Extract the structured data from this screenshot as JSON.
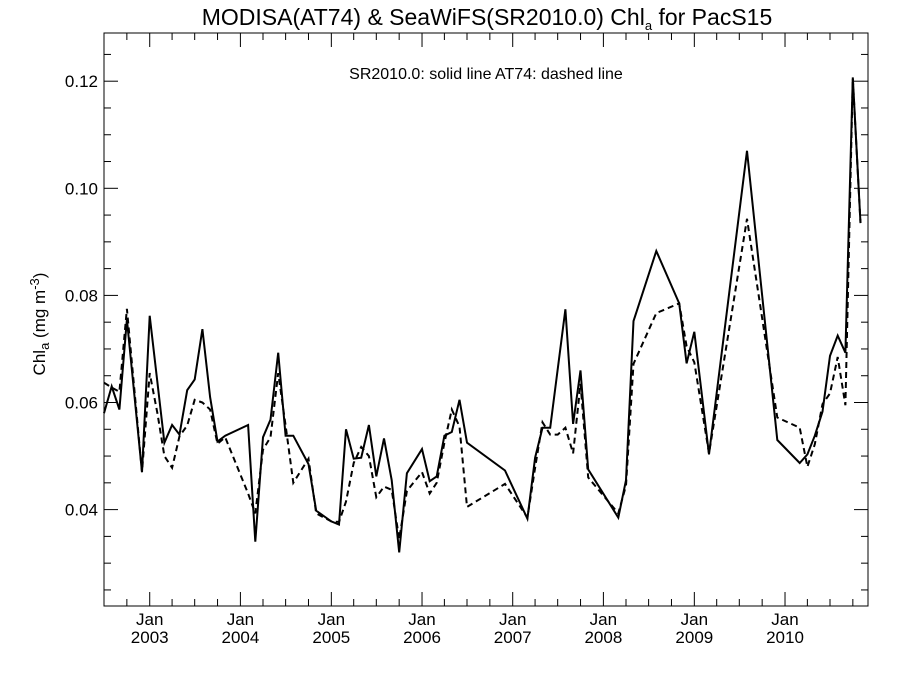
{
  "chart_data": {
    "type": "line",
    "title": {
      "main": "MODISA(AT74) & SeaWiFS(SR2010.0)  Chl",
      "sub": "a",
      "tail": " for PacS15"
    },
    "annotation": "SR2010.0: solid line   AT74: dashed line",
    "ylabel": {
      "main": "Chl",
      "sub": "a",
      "unit": " (mg m",
      "sup": "-3",
      "close": ")"
    },
    "ylim": [
      0.022,
      0.129
    ],
    "yticks": [
      0.04,
      0.06,
      0.08,
      0.1,
      0.12
    ],
    "ytick_labels": [
      "0.04",
      "0.06",
      "0.08",
      "0.10",
      "0.12"
    ],
    "ytick_minor": [
      0.025,
      0.03,
      0.035,
      0.045,
      0.05,
      0.055,
      0.065,
      0.07,
      0.075,
      0.085,
      0.09,
      0.095,
      0.105,
      0.11,
      0.115,
      0.125
    ],
    "xlim": [
      "2002-07-01",
      "2010-12-01"
    ],
    "xticks": [
      {
        "date": "2003-01-01",
        "month": "Jan",
        "year": "2003"
      },
      {
        "date": "2004-01-01",
        "month": "Jan",
        "year": "2004"
      },
      {
        "date": "2005-01-01",
        "month": "Jan",
        "year": "2005"
      },
      {
        "date": "2006-01-01",
        "month": "Jan",
        "year": "2006"
      },
      {
        "date": "2007-01-01",
        "month": "Jan",
        "year": "2007"
      },
      {
        "date": "2008-01-01",
        "month": "Jan",
        "year": "2008"
      },
      {
        "date": "2009-01-01",
        "month": "Jan",
        "year": "2009"
      },
      {
        "date": "2010-01-01",
        "month": "Jan",
        "year": "2010"
      }
    ],
    "xtick_minor_months": [
      4,
      7,
      10
    ],
    "grid": false,
    "series": [
      {
        "name": "SR2010.0",
        "style": "solid",
        "points": [
          [
            "2002-07-01",
            0.058
          ],
          [
            "2002-08-01",
            0.063
          ],
          [
            "2002-09-01",
            0.0587
          ],
          [
            "2002-10-01",
            0.0755
          ],
          [
            "2002-12-01",
            0.047
          ],
          [
            "2003-01-01",
            0.0762
          ],
          [
            "2003-03-01",
            0.0525
          ],
          [
            "2003-04-01",
            0.0558
          ],
          [
            "2003-05-01",
            0.054
          ],
          [
            "2003-06-01",
            0.0623
          ],
          [
            "2003-07-01",
            0.0643
          ],
          [
            "2003-08-01",
            0.0737
          ],
          [
            "2003-09-01",
            0.061
          ],
          [
            "2003-10-01",
            0.0527
          ],
          [
            "2003-11-01",
            0.0538
          ],
          [
            "2004-02-01",
            0.0558
          ],
          [
            "2004-03-01",
            0.034
          ],
          [
            "2004-04-01",
            0.0535
          ],
          [
            "2004-05-01",
            0.0568
          ],
          [
            "2004-06-01",
            0.0693
          ],
          [
            "2004-07-01",
            0.0538
          ],
          [
            "2004-08-01",
            0.0538
          ],
          [
            "2004-10-01",
            0.0485
          ],
          [
            "2004-11-01",
            0.0398
          ],
          [
            "2005-01-01",
            0.0378
          ],
          [
            "2005-02-01",
            0.0372
          ],
          [
            "2005-03-01",
            0.055
          ],
          [
            "2005-04-01",
            0.0495
          ],
          [
            "2005-05-01",
            0.0497
          ],
          [
            "2005-06-01",
            0.0558
          ],
          [
            "2005-07-01",
            0.0462
          ],
          [
            "2005-08-01",
            0.0533
          ],
          [
            "2005-09-01",
            0.0455
          ],
          [
            "2005-10-01",
            0.032
          ],
          [
            "2005-11-01",
            0.0468
          ],
          [
            "2006-01-01",
            0.0513
          ],
          [
            "2006-02-01",
            0.0453
          ],
          [
            "2006-03-01",
            0.0462
          ],
          [
            "2006-04-01",
            0.0538
          ],
          [
            "2006-05-01",
            0.0545
          ],
          [
            "2006-06-01",
            0.0605
          ],
          [
            "2006-07-01",
            0.0525
          ],
          [
            "2006-12-01",
            0.0473
          ],
          [
            "2007-03-01",
            0.0383
          ],
          [
            "2007-04-01",
            0.0497
          ],
          [
            "2007-05-01",
            0.0553
          ],
          [
            "2007-06-01",
            0.0553
          ],
          [
            "2007-08-01",
            0.0774
          ],
          [
            "2007-09-01",
            0.056
          ],
          [
            "2007-10-01",
            0.066
          ],
          [
            "2007-11-01",
            0.0475
          ],
          [
            "2008-03-01",
            0.0385
          ],
          [
            "2008-04-01",
            0.0455
          ],
          [
            "2008-05-01",
            0.0752
          ],
          [
            "2008-08-01",
            0.0883
          ],
          [
            "2008-11-01",
            0.0785
          ],
          [
            "2008-12-01",
            0.0673
          ],
          [
            "2009-01-01",
            0.0732
          ],
          [
            "2009-03-01",
            0.0503
          ],
          [
            "2009-08-01",
            0.107
          ],
          [
            "2009-12-01",
            0.053
          ],
          [
            "2010-03-01",
            0.0487
          ],
          [
            "2010-04-01",
            0.0503
          ],
          [
            "2010-05-01",
            0.0538
          ],
          [
            "2010-06-01",
            0.0583
          ],
          [
            "2010-07-01",
            0.0687
          ],
          [
            "2010-08-01",
            0.0725
          ],
          [
            "2010-09-01",
            0.0693
          ],
          [
            "2010-10-01",
            0.1207
          ],
          [
            "2010-11-01",
            0.0935
          ]
        ]
      },
      {
        "name": "AT74",
        "style": "dashed",
        "points": [
          [
            "2002-07-01",
            0.0637
          ],
          [
            "2002-08-01",
            0.0628
          ],
          [
            "2002-09-01",
            0.062
          ],
          [
            "2002-10-01",
            0.0775
          ],
          [
            "2002-12-01",
            0.047
          ],
          [
            "2003-01-01",
            0.0655
          ],
          [
            "2003-02-01",
            0.058
          ],
          [
            "2003-03-01",
            0.05
          ],
          [
            "2003-04-01",
            0.0478
          ],
          [
            "2003-05-01",
            0.0537
          ],
          [
            "2003-06-01",
            0.0557
          ],
          [
            "2003-07-01",
            0.0605
          ],
          [
            "2003-08-01",
            0.06
          ],
          [
            "2003-09-01",
            0.0587
          ],
          [
            "2003-10-01",
            0.0523
          ],
          [
            "2003-11-01",
            0.0535
          ],
          [
            "2004-02-01",
            0.043
          ],
          [
            "2004-03-01",
            0.0393
          ],
          [
            "2004-04-01",
            0.0512
          ],
          [
            "2004-05-01",
            0.0535
          ],
          [
            "2004-06-01",
            0.0655
          ],
          [
            "2004-07-01",
            0.0557
          ],
          [
            "2004-08-01",
            0.045
          ],
          [
            "2004-10-01",
            0.0495
          ],
          [
            "2004-11-01",
            0.0393
          ],
          [
            "2005-01-01",
            0.0378
          ],
          [
            "2005-02-01",
            0.0377
          ],
          [
            "2005-03-01",
            0.0415
          ],
          [
            "2005-04-01",
            0.0487
          ],
          [
            "2005-05-01",
            0.0517
          ],
          [
            "2005-06-01",
            0.05
          ],
          [
            "2005-07-01",
            0.0423
          ],
          [
            "2005-08-01",
            0.0443
          ],
          [
            "2005-09-01",
            0.0437
          ],
          [
            "2005-10-01",
            0.0345
          ],
          [
            "2005-11-01",
            0.0435
          ],
          [
            "2006-01-01",
            0.047
          ],
          [
            "2006-02-01",
            0.043
          ],
          [
            "2006-03-01",
            0.045
          ],
          [
            "2006-04-01",
            0.0525
          ],
          [
            "2006-05-01",
            0.0587
          ],
          [
            "2006-06-01",
            0.0555
          ],
          [
            "2006-07-01",
            0.0405
          ],
          [
            "2006-12-01",
            0.0448
          ],
          [
            "2007-03-01",
            0.0385
          ],
          [
            "2007-04-01",
            0.0478
          ],
          [
            "2007-05-01",
            0.0563
          ],
          [
            "2007-06-01",
            0.054
          ],
          [
            "2007-07-01",
            0.054
          ],
          [
            "2007-08-01",
            0.0553
          ],
          [
            "2007-09-01",
            0.0505
          ],
          [
            "2007-10-01",
            0.0635
          ],
          [
            "2007-11-01",
            0.046
          ],
          [
            "2008-03-01",
            0.0393
          ],
          [
            "2008-04-01",
            0.0445
          ],
          [
            "2008-05-01",
            0.0672
          ],
          [
            "2008-08-01",
            0.0767
          ],
          [
            "2008-11-01",
            0.0785
          ],
          [
            "2008-12-01",
            0.0705
          ],
          [
            "2009-01-01",
            0.0675
          ],
          [
            "2009-03-01",
            0.0505
          ],
          [
            "2009-08-01",
            0.0943
          ],
          [
            "2009-12-01",
            0.0572
          ],
          [
            "2010-03-01",
            0.0553
          ],
          [
            "2010-04-01",
            0.048
          ],
          [
            "2010-05-01",
            0.0522
          ],
          [
            "2010-06-01",
            0.0597
          ],
          [
            "2010-07-01",
            0.0617
          ],
          [
            "2010-08-01",
            0.0685
          ],
          [
            "2010-09-01",
            0.0595
          ],
          [
            "2010-10-01",
            0.1205
          ],
          [
            "2010-11-01",
            0.0935
          ]
        ]
      }
    ]
  }
}
